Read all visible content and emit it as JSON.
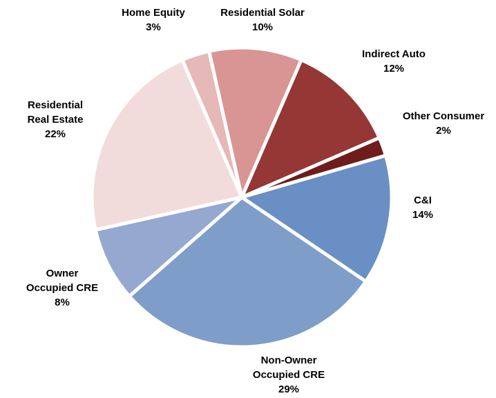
{
  "chart_data": {
    "type": "pie",
    "categories": [
      "Home Equity",
      "Residential Solar",
      "Indirect Auto",
      "Other Consumer",
      "C&I",
      "Non-Owner\nOccupied CRE",
      "Owner\nOccupied CRE",
      "Residential\nReal Estate"
    ],
    "values": [
      3,
      10,
      12,
      2,
      14,
      29,
      8,
      22
    ],
    "value_labels": [
      "3%",
      "10%",
      "12%",
      "2%",
      "14%",
      "29%",
      "8%",
      "22%"
    ],
    "colors": [
      "#e6b8b7",
      "#d99594",
      "#953735",
      "#6e1c1c",
      "#6a8fc4",
      "#7f9dc9",
      "#95a9d0",
      "#f2dcdb"
    ]
  }
}
